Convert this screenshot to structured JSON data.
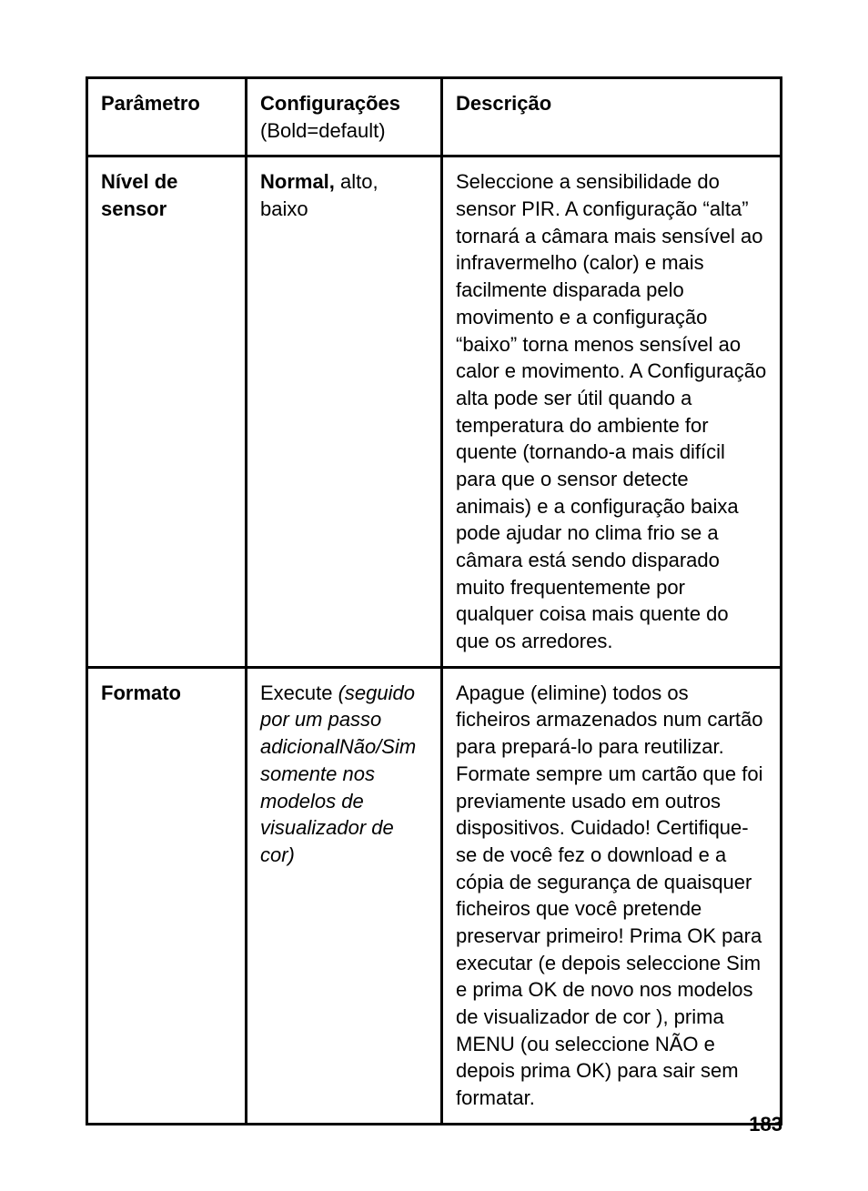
{
  "table": {
    "headers": {
      "param": "Parâmetro",
      "config_main": "Configurações",
      "config_note": "(Bold=default)",
      "desc": "Descrição"
    },
    "rows": [
      {
        "param": "Nível de sensor",
        "config_bold": "Normal,",
        "config_rest": " alto, baixo",
        "config_italic": "",
        "desc": "Seleccione a sensibilidade do sensor PIR. A configuração “alta” tornará a câmara mais sensível ao infravermelho (calor) e mais facilmente disparada pelo movimento e a configuração “baixo” torna menos sensível ao calor e movimento. A Configuração alta pode ser útil quando a temperatura do ambiente for quente (tornando-a mais difícil para que o sensor detecte animais) e a configuração baixa pode ajudar no clima frio se a  câmara está sendo disparado muito frequentemente por qualquer coisa mais quente do que os arredores."
      },
      {
        "param": "Formato",
        "config_bold": "",
        "config_rest": "Execute ",
        "config_italic": "(seguido por um passo adicionalNão/Sim somente nos modelos de visualizador de cor)",
        "desc": "Apague (elimine) todos os ficheiros armazenados num cartão para prepará-lo para reutilizar. Formate sempre um cartão que foi previamente usado em outros dispositivos. Cuidado! Certifique-se de você fez o download e a cópia de segurança de quaisquer ficheiros que você pretende preservar primeiro! Prima OK para executar (e depois seleccione Sim e prima OK de novo nos modelos de visualizador de cor ), prima MENU  (ou seleccione NÃO e depois prima OK) para sair sem formatar."
      }
    ]
  },
  "page_number": "183"
}
